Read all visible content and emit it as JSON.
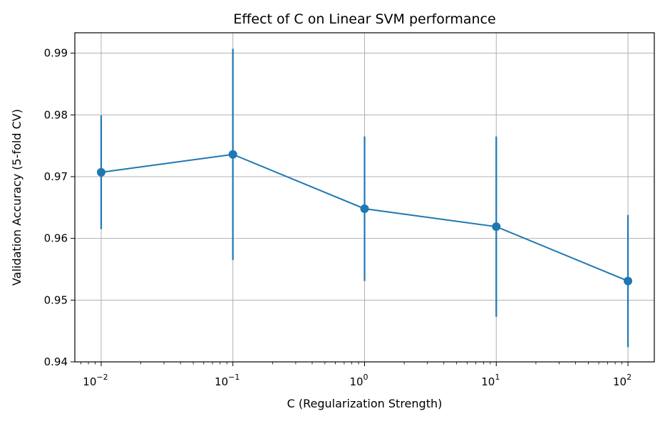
{
  "chart_data": {
    "type": "line",
    "title": "Effect of C on Linear SVM performance",
    "xlabel": "C (Regularization Strength)",
    "ylabel": "Validation Accuracy (5-fold CV)",
    "x_scale": "log",
    "x": [
      0.01,
      0.1,
      1,
      10,
      100
    ],
    "x_tick_labels": [
      {
        "base": "10",
        "exp": "−2"
      },
      {
        "base": "10",
        "exp": "−1"
      },
      {
        "base": "10",
        "exp": "0"
      },
      {
        "base": "10",
        "exp": "1"
      },
      {
        "base": "10",
        "exp": "2"
      }
    ],
    "y_ticks": [
      "0.94",
      "0.95",
      "0.96",
      "0.97",
      "0.98",
      "0.99"
    ],
    "ylim": [
      0.94,
      0.9933
    ],
    "xlim_log10": [
      -2.2,
      2.2
    ],
    "grid": true,
    "series": [
      {
        "values": [
          0.9707,
          0.9736,
          0.9648,
          0.9619,
          0.9531
        ],
        "error": [
          0.0092,
          0.0171,
          0.0117,
          0.0146,
          0.0107
        ],
        "color": "#1f77b4"
      }
    ]
  }
}
